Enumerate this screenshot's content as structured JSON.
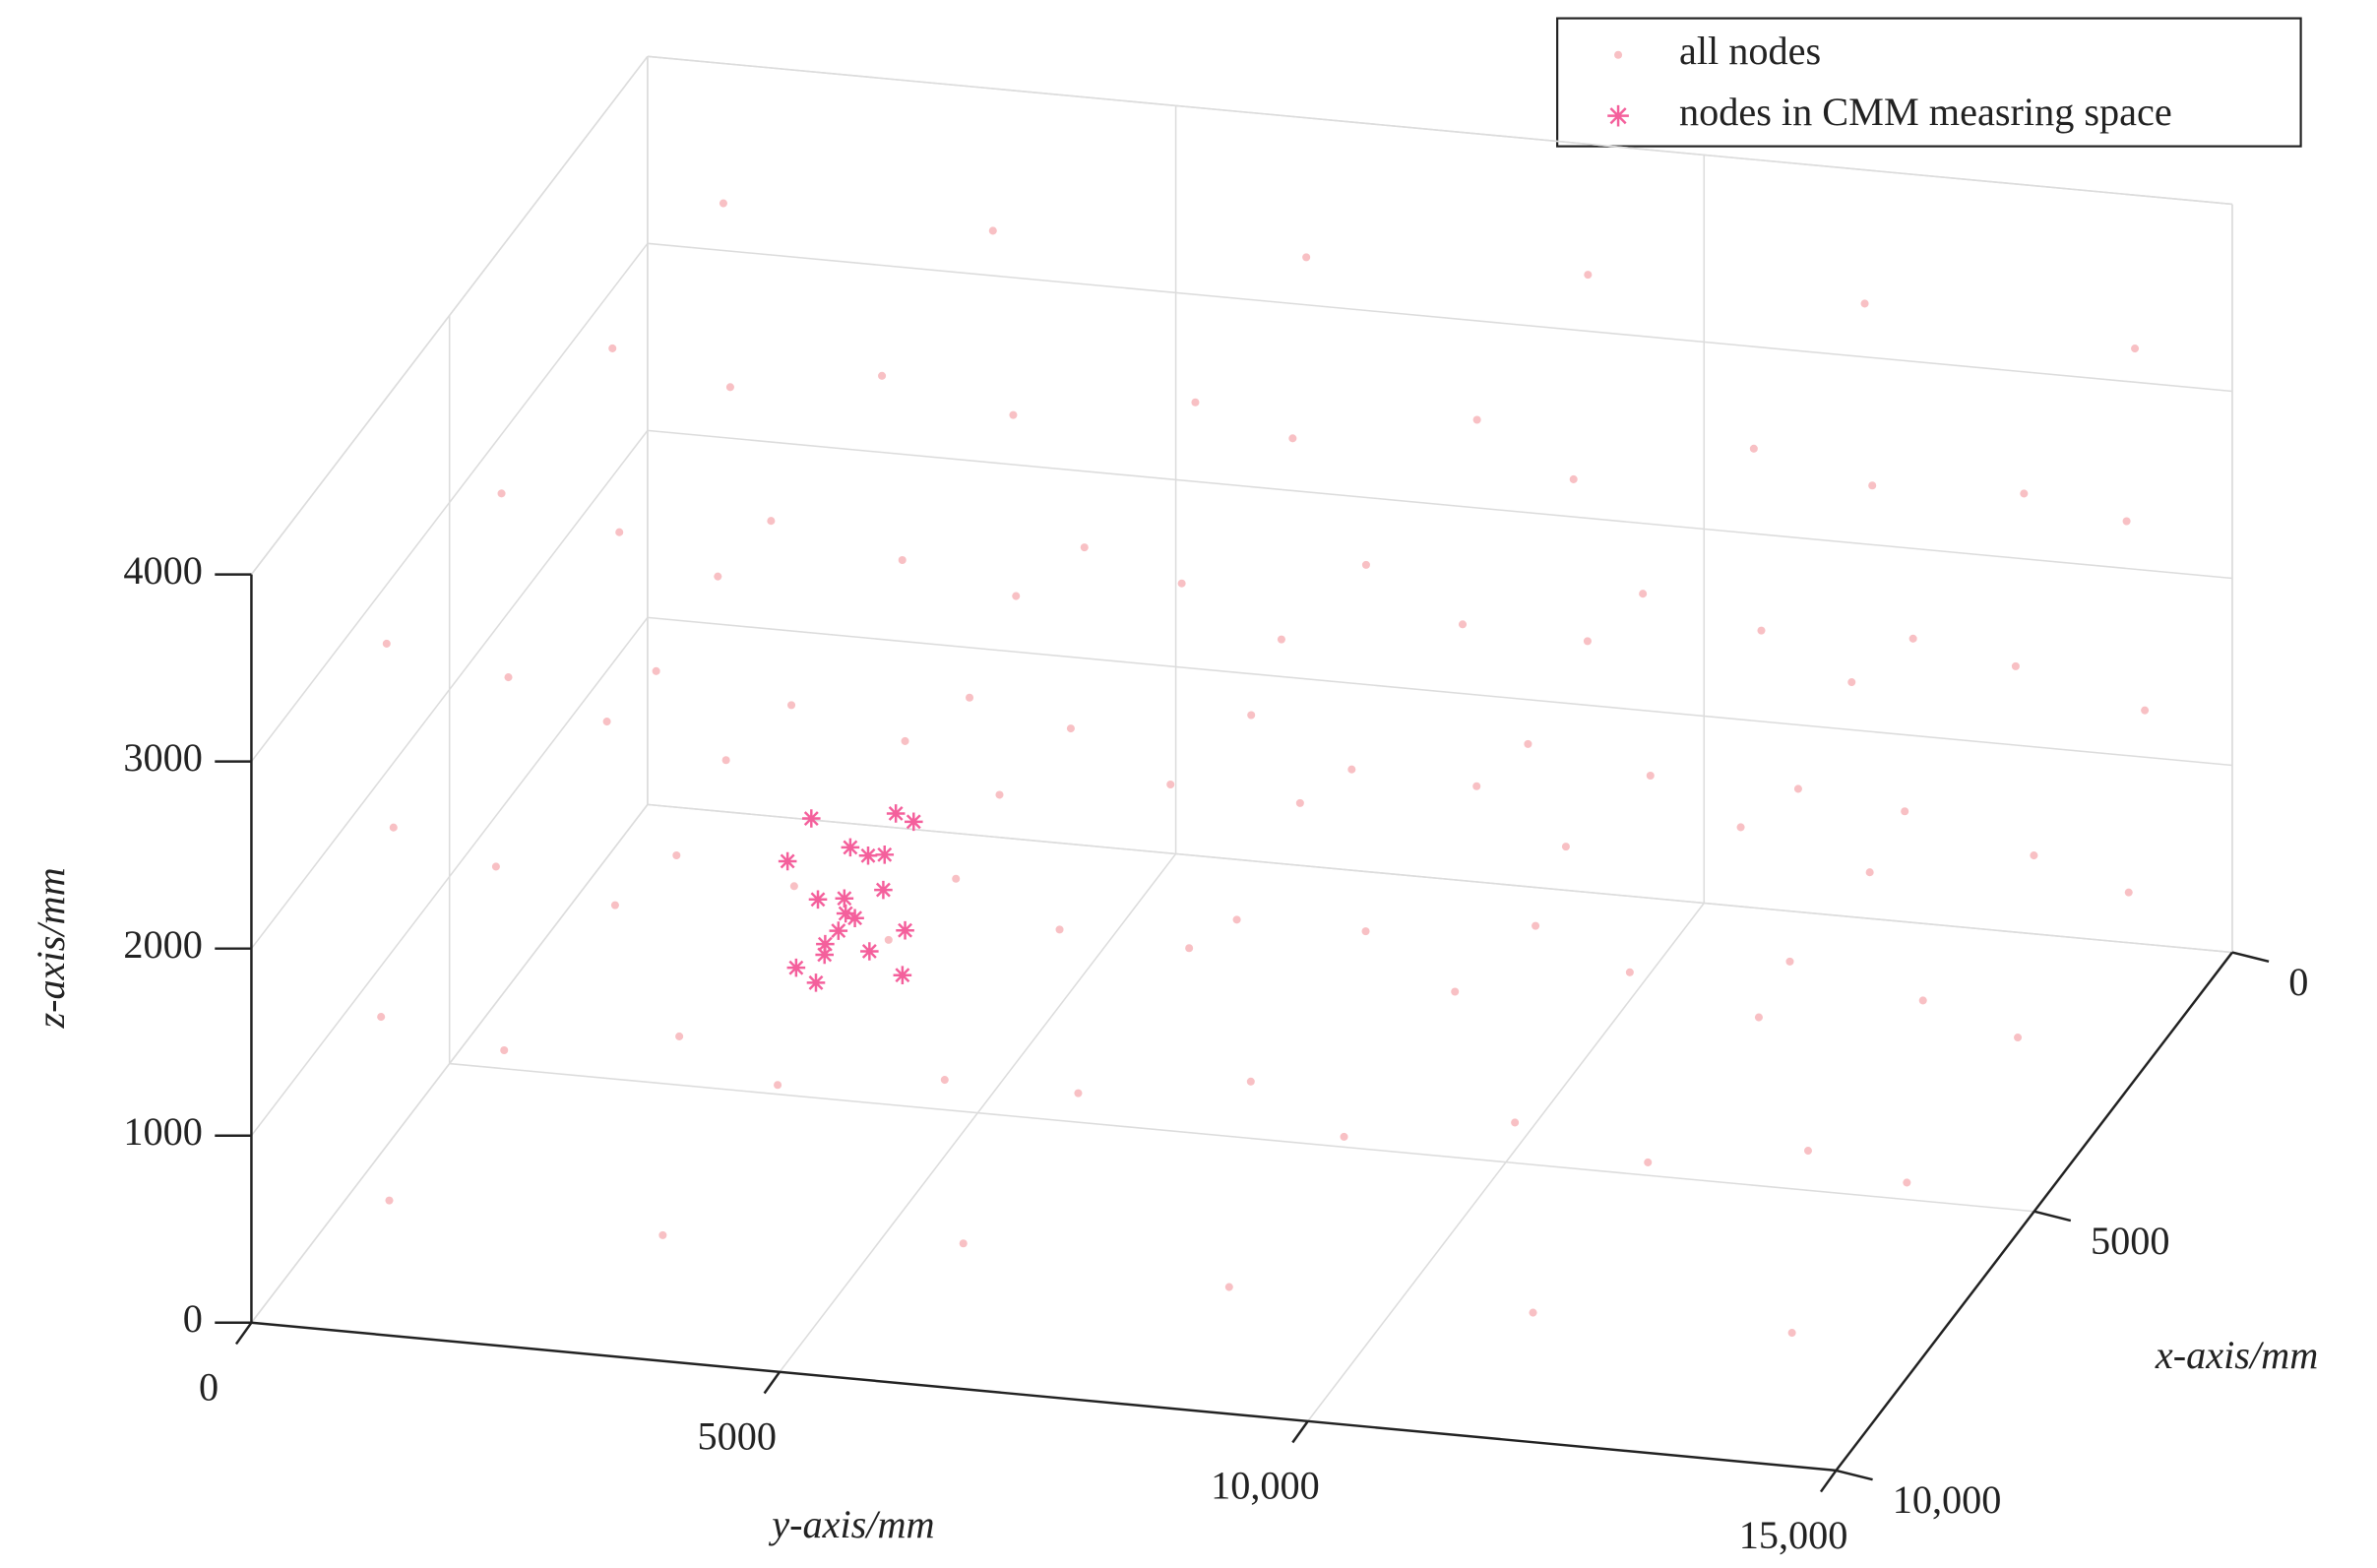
{
  "chart_data": {
    "type": "scatter3d",
    "xlabel": "x-axis/mm",
    "ylabel": "y-axis/mm",
    "zlabel": "z-axis/mm",
    "xlim": [
      0,
      10000
    ],
    "ylim": [
      0,
      15000
    ],
    "zlim": [
      0,
      4000
    ],
    "xticks": [
      0,
      5000,
      {
        "value": 10000,
        "label": "10,000"
      }
    ],
    "yticks": [
      0,
      5000,
      {
        "value": 10000,
        "label": "10,000"
      },
      {
        "value": 15000,
        "label": "15,000"
      }
    ],
    "zticks": [
      0,
      1000,
      2000,
      3000,
      4000
    ],
    "grid": true,
    "legend": "upper right",
    "series": [
      {
        "name": "all nodes",
        "color": "#f8c0c4",
        "marker": "dot",
        "x": [
          820,
          760,
          900,
          700,
          850,
          780,
          690,
          910,
          730,
          880,
          810,
          760,
          900,
          700,
          840,
          770,
          750,
          860,
          820,
          690,
          880,
          740,
          800,
          910,
          3620,
          3560,
          3700,
          3500,
          3650,
          3580,
          3490,
          3710,
          3530,
          3680,
          3610,
          3560,
          3700,
          3500,
          3640,
          3570,
          3550,
          3660,
          3620,
          3490,
          3680,
          3540,
          3600,
          3710,
          6420,
          6360,
          6500,
          6300,
          6450,
          6380,
          6290,
          6510,
          6330,
          6480,
          6410,
          6360,
          6500,
          6300,
          6440,
          6370,
          6350,
          6460,
          6420,
          6290,
          6480,
          6340,
          6400,
          6510,
          9320,
          9260,
          9400,
          9200,
          9350,
          9280,
          9190,
          9410,
          9230,
          9380,
          9310,
          9260,
          9400,
          9200,
          9340,
          9270,
          9250,
          9360,
          9320,
          9190,
          9380,
          9240,
          9300,
          9410
        ],
        "y": [
          1050,
          950,
          1120,
          980,
          3650,
          3780,
          3720,
          3610,
          6450,
          6330,
          6410,
          6520,
          9030,
          9160,
          9080,
          9190,
          11850,
          11720,
          11900,
          11780,
          14350,
          14450,
          14300,
          14420,
          1050,
          950,
          1120,
          980,
          3650,
          3780,
          3720,
          3610,
          6450,
          6330,
          6410,
          6520,
          9030,
          9160,
          9080,
          9190,
          11850,
          11720,
          11900,
          11780,
          14350,
          14450,
          14300,
          14420,
          1050,
          950,
          1120,
          980,
          3650,
          3780,
          3720,
          3610,
          6450,
          6330,
          6410,
          6520,
          9030,
          9160,
          9080,
          9190,
          11850,
          11720,
          11900,
          11780,
          14350,
          14450,
          14300,
          14420,
          1050,
          950,
          1120,
          980,
          3650,
          3780,
          3720,
          3610,
          6450,
          6330,
          6410,
          6520,
          9030,
          9160,
          9080,
          9190,
          11850,
          11720,
          11900,
          11780,
          14350,
          14450,
          14300,
          14420
        ],
        "z": [
          520,
          1480,
          2540,
          3460,
          480,
          1530,
          2470,
          3510,
          550,
          1460,
          2520,
          3480,
          500,
          1550,
          2450,
          3530,
          470,
          1510,
          2560,
          3490,
          530,
          1470,
          2490,
          3450,
          520,
          1480,
          2540,
          3460,
          480,
          1530,
          2470,
          3510,
          550,
          1460,
          2520,
          3480,
          500,
          1550,
          2450,
          3530,
          470,
          1510,
          2560,
          3490,
          530,
          1470,
          2490,
          3450,
          520,
          1480,
          2540,
          3460,
          480,
          1530,
          2470,
          3510,
          550,
          1460,
          2520,
          3480,
          500,
          1550,
          2450,
          3530,
          470,
          1510,
          2560,
          3490,
          530,
          1470,
          2490,
          3450,
          520,
          1480,
          2540,
          3460,
          480,
          1530,
          2470,
          3510,
          550,
          1460,
          2520,
          3480,
          500,
          1550,
          2450,
          3530,
          470,
          1510,
          2560,
          3490,
          530,
          1470,
          2490,
          3450
        ]
      },
      {
        "name": "nodes in CMM measring space",
        "color": "#f4609c",
        "marker": "star",
        "x": [
          7800,
          8300,
          8100,
          7900,
          8400,
          8000,
          8200,
          7700,
          8500,
          8100,
          7950,
          8250,
          8050,
          7850,
          8350,
          8150,
          7750,
          8450,
          8000,
          8200
        ],
        "y": [
          4600,
          5200,
          4900,
          5400,
          4700,
          5100,
          4400,
          5300,
          4800,
          5000,
          5500,
          4500,
          5250,
          4750,
          5050,
          4650,
          5150,
          4850,
          5350,
          4950
        ],
        "z": [
          1600,
          2300,
          2000,
          1800,
          2500,
          1700,
          2200,
          1500,
          2100,
          1900,
          2400,
          1650,
          2050,
          1750,
          2350,
          1550,
          2150,
          1850,
          2450,
          1950
        ]
      }
    ]
  }
}
